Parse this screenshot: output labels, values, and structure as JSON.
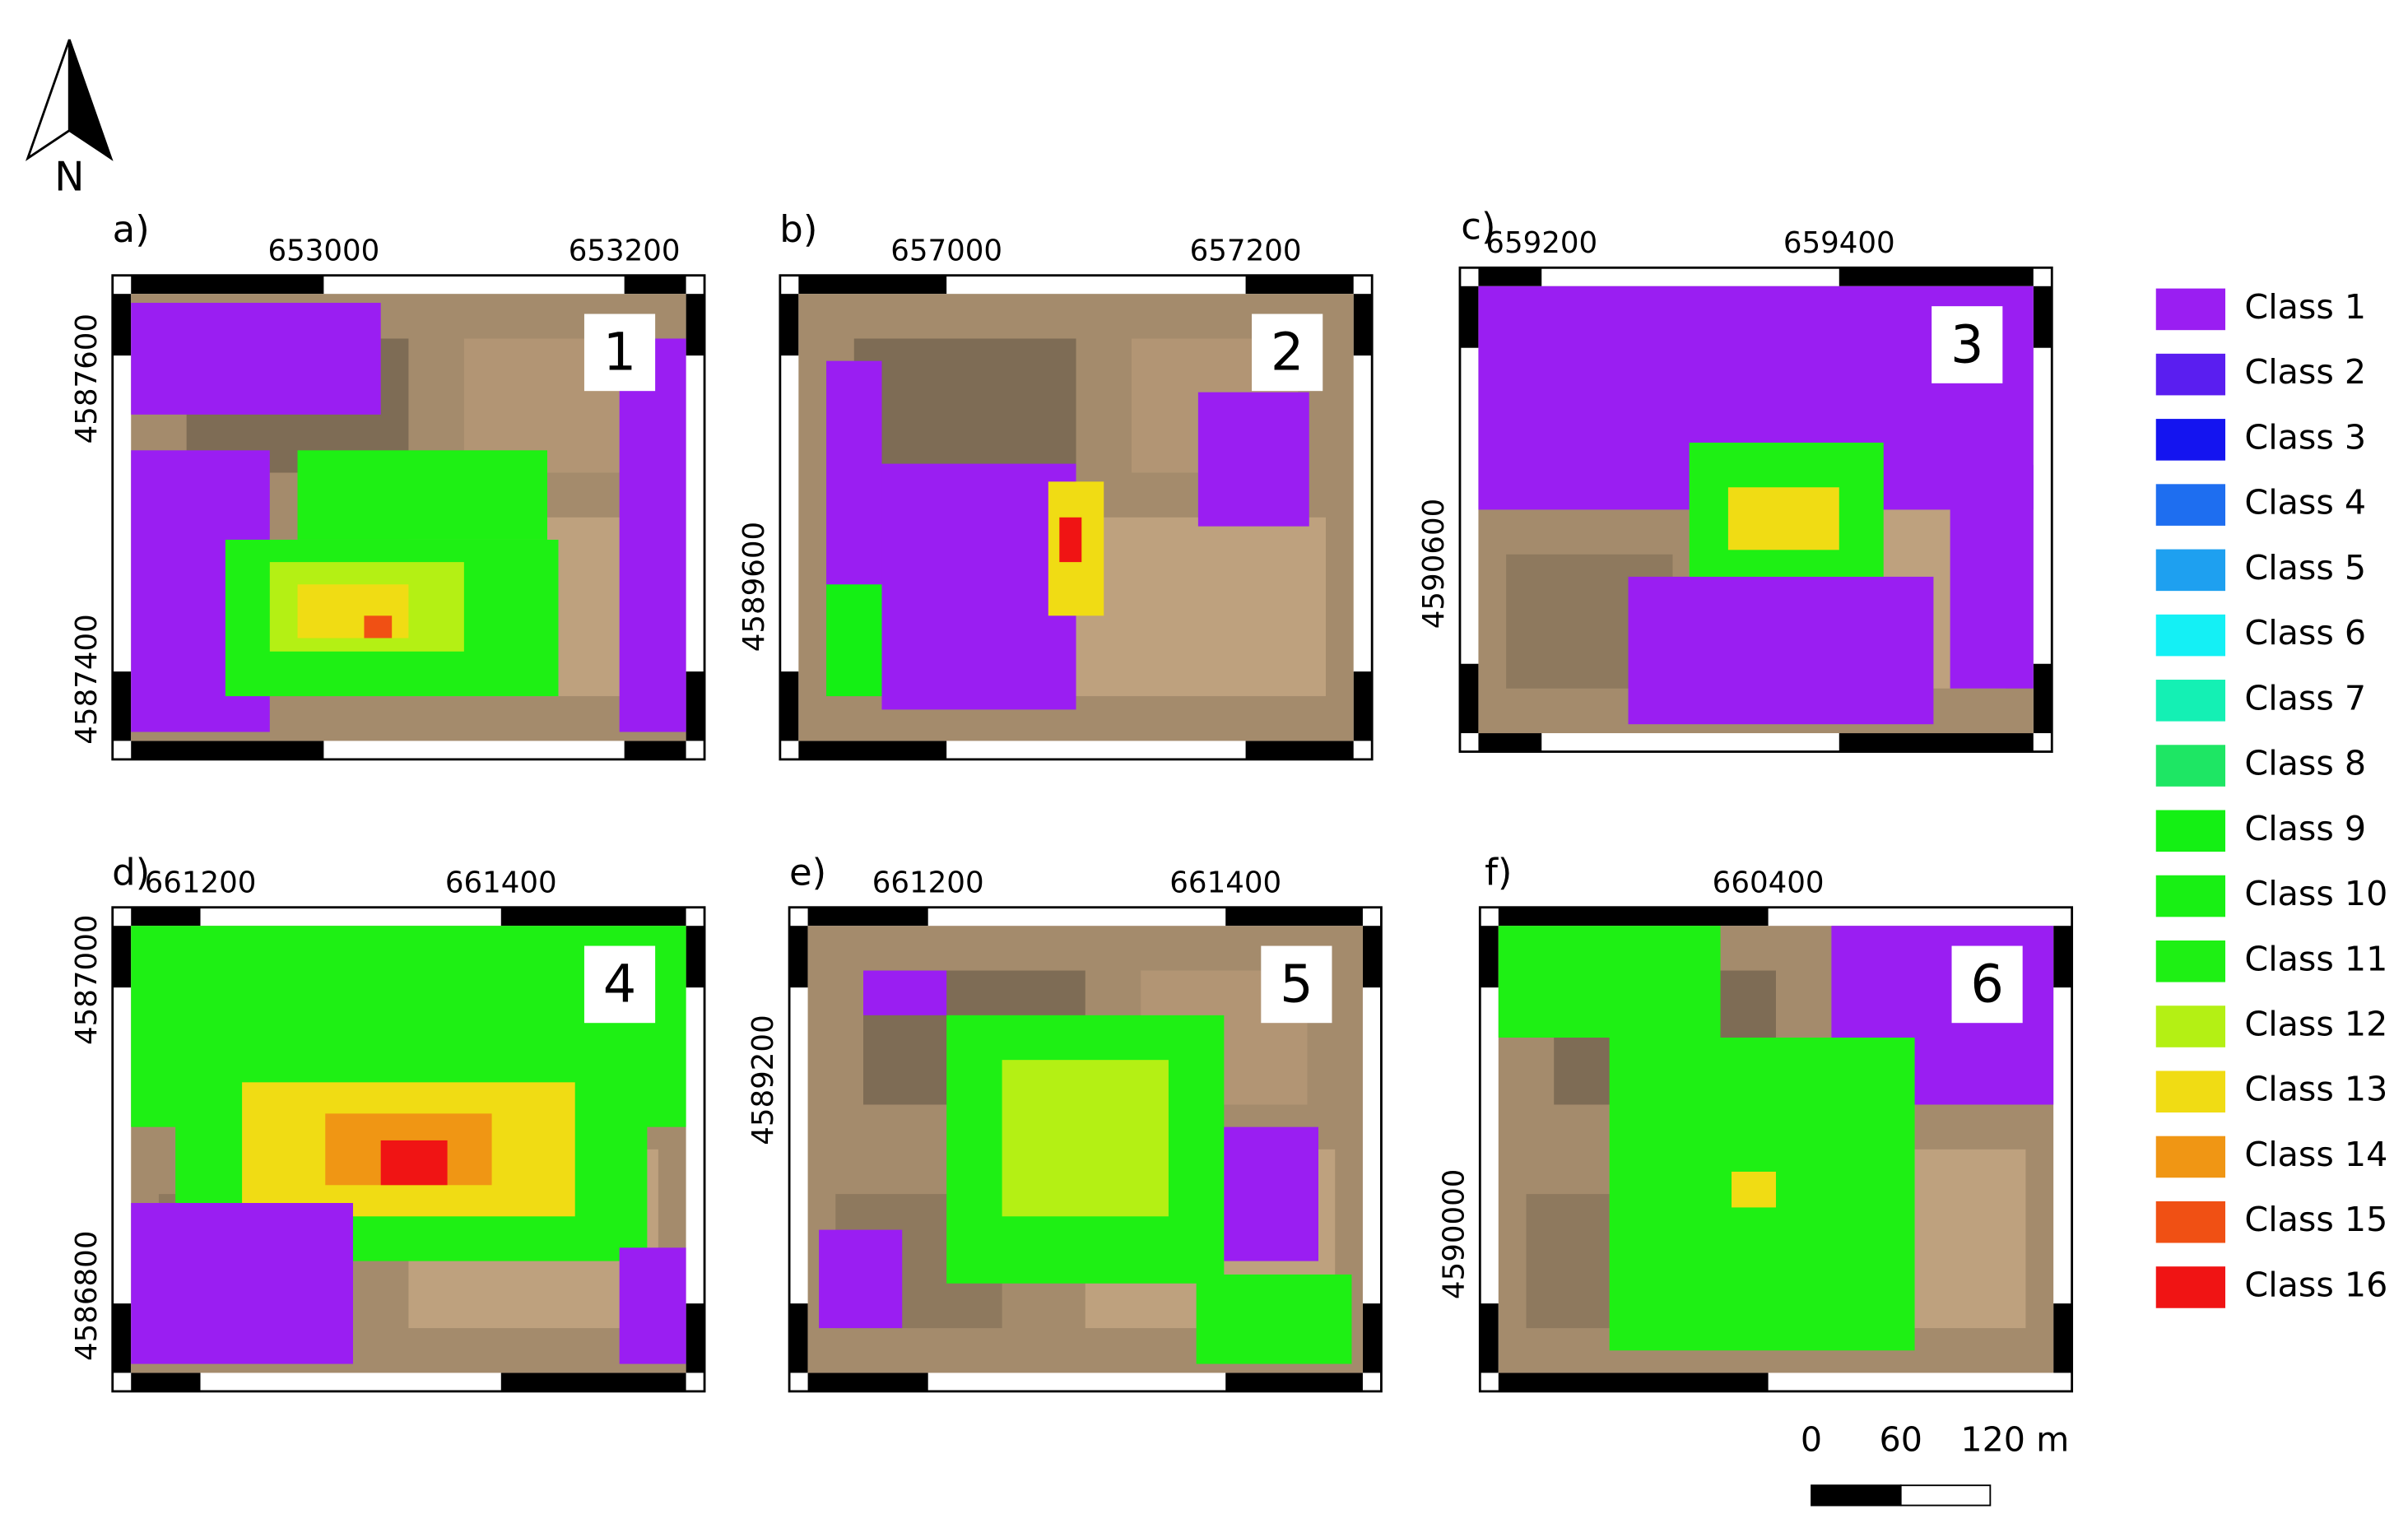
{
  "north": "N",
  "panels": [
    {
      "label": "a)",
      "number": "1",
      "x_labels": [
        "653000",
        "653200"
      ],
      "y_labels": [
        "4587600",
        "4587400"
      ]
    },
    {
      "label": "b)",
      "number": "2",
      "x_labels": [
        "657000",
        "657200"
      ],
      "y_labels": [
        "4589600"
      ]
    },
    {
      "label": "c)",
      "number": "3",
      "x_labels": [
        "659200",
        "659400"
      ],
      "y_labels": [
        "4590600"
      ]
    },
    {
      "label": "d)",
      "number": "4",
      "x_labels": [
        "661200",
        "661400"
      ],
      "y_labels": [
        "4587000",
        "4586800"
      ]
    },
    {
      "label": "e)",
      "number": "5",
      "x_labels": [
        "661200",
        "661400"
      ],
      "y_labels": [
        "4589200"
      ]
    },
    {
      "label": "f)",
      "number": "6",
      "x_labels": [
        "660400"
      ],
      "y_labels": [
        "4590000"
      ]
    }
  ],
  "legend": [
    {
      "label": "Class 1",
      "color": "#9a1ef2"
    },
    {
      "label": "Class 2",
      "color": "#5a1ef0"
    },
    {
      "label": "Class 3",
      "color": "#1414f0"
    },
    {
      "label": "Class 4",
      "color": "#1e6ef0"
    },
    {
      "label": "Class 5",
      "color": "#1ea0f0"
    },
    {
      "label": "Class 6",
      "color": "#14f0f5"
    },
    {
      "label": "Class 7",
      "color": "#14f0b4"
    },
    {
      "label": "Class 8",
      "color": "#1ee664"
    },
    {
      "label": "Class 9",
      "color": "#14f014"
    },
    {
      "label": "Class 10",
      "color": "#18f014"
    },
    {
      "label": "Class 11",
      "color": "#1ef014"
    },
    {
      "label": "Class 12",
      "color": "#b4f014"
    },
    {
      "label": "Class 13",
      "color": "#f0dc14"
    },
    {
      "label": "Class 14",
      "color": "#f09614"
    },
    {
      "label": "Class 15",
      "color": "#f05014"
    },
    {
      "label": "Class 16",
      "color": "#f01414"
    }
  ],
  "scale_bar": [
    "0",
    "60",
    "120 m"
  ]
}
